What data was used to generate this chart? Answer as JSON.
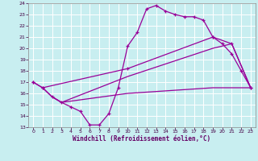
{
  "xlabel": "Windchill (Refroidissement éolien,°C)",
  "bg_color": "#c8eef0",
  "line_color": "#990099",
  "grid_color": "#ffffff",
  "xlim": [
    -0.5,
    23.5
  ],
  "ylim": [
    13,
    24
  ],
  "xticks": [
    0,
    1,
    2,
    3,
    4,
    5,
    6,
    7,
    8,
    9,
    10,
    11,
    12,
    13,
    14,
    15,
    16,
    17,
    18,
    19,
    20,
    21,
    22,
    23
  ],
  "yticks": [
    13,
    14,
    15,
    16,
    17,
    18,
    19,
    20,
    21,
    22,
    23,
    24
  ],
  "line1_x": [
    0,
    1,
    2,
    3,
    4,
    5,
    6,
    7,
    8,
    9,
    10,
    11,
    12,
    13,
    14,
    15,
    16,
    17,
    18,
    19,
    20,
    21,
    22,
    23
  ],
  "line1_y": [
    17.0,
    16.5,
    15.7,
    15.2,
    14.8,
    14.4,
    13.2,
    13.2,
    14.2,
    16.5,
    20.2,
    21.4,
    23.5,
    23.8,
    23.3,
    23.0,
    22.8,
    22.8,
    22.5,
    21.0,
    20.4,
    19.5,
    18.0,
    16.5
  ],
  "line2_x": [
    0,
    1,
    10,
    19,
    21,
    23
  ],
  "line2_y": [
    17.0,
    16.5,
    18.2,
    21.0,
    20.4,
    16.5
  ],
  "line3_x": [
    1,
    2,
    3,
    10,
    19,
    21,
    23
  ],
  "line3_y": [
    16.5,
    15.7,
    15.2,
    17.5,
    20.0,
    20.4,
    16.5
  ],
  "line4_x": [
    2,
    3,
    10,
    19,
    23
  ],
  "line4_y": [
    15.7,
    15.2,
    16.0,
    16.5,
    16.5
  ]
}
